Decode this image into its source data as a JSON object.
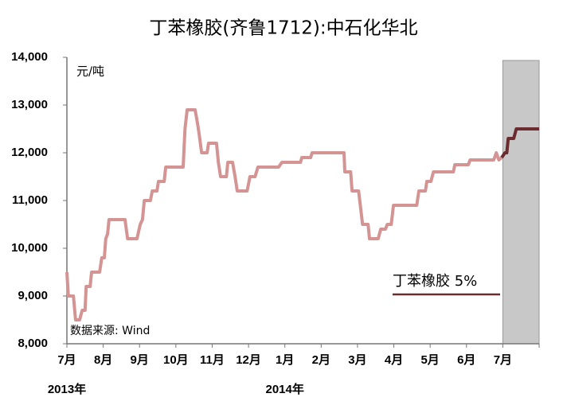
{
  "chart_data": {
    "type": "line",
    "title": "丁苯橡胶(齐鲁1712):中石化华北",
    "unit_label": "元/吨",
    "source": "数据来源: Wind",
    "xlim": [
      0,
      13
    ],
    "xticks": [
      {
        "value": 0,
        "label": "7月"
      },
      {
        "value": 1,
        "label": "8月"
      },
      {
        "value": 2,
        "label": "9月"
      },
      {
        "value": 3,
        "label": "10月"
      },
      {
        "value": 4,
        "label": "11月"
      },
      {
        "value": 5,
        "label": "12月"
      },
      {
        "value": 6,
        "label": "1月"
      },
      {
        "value": 7,
        "label": "2月"
      },
      {
        "value": 8,
        "label": "3月"
      },
      {
        "value": 9,
        "label": "4月"
      },
      {
        "value": 10,
        "label": "5月"
      },
      {
        "value": 11,
        "label": "6月"
      },
      {
        "value": 12,
        "label": "7月"
      }
    ],
    "year_labels": [
      {
        "value": 0,
        "label": "2013年"
      },
      {
        "value": 6,
        "label": "2014年"
      }
    ],
    "ylim": [
      8000,
      14000
    ],
    "yticks": [
      {
        "value": 8000,
        "label": "8,000"
      },
      {
        "value": 9000,
        "label": "9,000"
      },
      {
        "value": 10000,
        "label": "10,000"
      },
      {
        "value": 11000,
        "label": "11,000"
      },
      {
        "value": 12000,
        "label": "12,000"
      },
      {
        "value": 13000,
        "label": "13,000"
      },
      {
        "value": 14000,
        "label": "14,000"
      }
    ],
    "shaded_region": [
      12,
      13
    ],
    "legend": "lower right",
    "series": [
      {
        "color": "#d49494",
        "x": [
          0,
          0.04,
          0.18,
          0.24,
          0.35,
          0.42,
          0.5,
          0.53,
          0.64,
          0.68,
          0.9,
          0.96,
          1.03,
          1.07,
          1.12,
          1.16,
          1.6,
          1.67,
          1.93,
          2.02,
          2.08,
          2.13,
          2.3,
          2.35,
          2.48,
          2.52,
          2.68,
          2.72,
          3.2,
          3.25,
          3.31,
          3.53,
          3.6,
          3.64,
          3.71,
          3.86,
          3.9,
          4.12,
          4.17,
          4.23,
          4.39,
          4.43,
          4.56,
          4.63,
          4.69,
          4.96,
          5.04,
          5.18,
          5.26,
          5.83,
          5.92,
          6.43,
          6.47,
          6.71,
          6.75,
          7.63,
          7.65,
          7.81,
          7.85,
          8.03,
          8.14,
          8.29,
          8.33,
          8.57,
          8.64,
          8.77,
          8.82,
          8.93,
          8.99,
          9.63,
          9.69,
          9.87,
          9.91,
          10.02,
          10.09,
          10.64,
          10.68,
          11.05,
          11.1,
          11.75,
          11.82,
          11.89,
          11.97
        ],
        "values": [
          9500,
          9000,
          9000,
          8500,
          8500,
          8700,
          8700,
          9200,
          9200,
          9500,
          9500,
          9800,
          9800,
          10200,
          10300,
          10600,
          10600,
          10200,
          10200,
          10500,
          10600,
          11000,
          11000,
          11200,
          11200,
          11400,
          11400,
          11700,
          11700,
          12500,
          12900,
          12900,
          12600,
          12400,
          12000,
          12000,
          12200,
          12200,
          11800,
          11500,
          11500,
          11800,
          11800,
          11500,
          11200,
          11200,
          11500,
          11500,
          11700,
          11700,
          11800,
          11800,
          11900,
          11900,
          12000,
          12000,
          11600,
          11600,
          11200,
          11200,
          10500,
          10500,
          10200,
          10200,
          10400,
          10400,
          10500,
          10500,
          10900,
          10900,
          11200,
          11200,
          11400,
          11400,
          11600,
          11600,
          11750,
          11750,
          11850,
          11850,
          12000,
          11850,
          11900
        ]
      },
      {
        "name": "丁苯橡胶 5%",
        "color": "#6b2c30",
        "x": [
          11.97,
          12.06,
          12.11,
          12.15,
          12.3,
          12.37,
          12.74,
          13.0
        ],
        "values": [
          11900,
          12000,
          12000,
          12300,
          12300,
          12500,
          12500,
          12500
        ]
      }
    ]
  }
}
